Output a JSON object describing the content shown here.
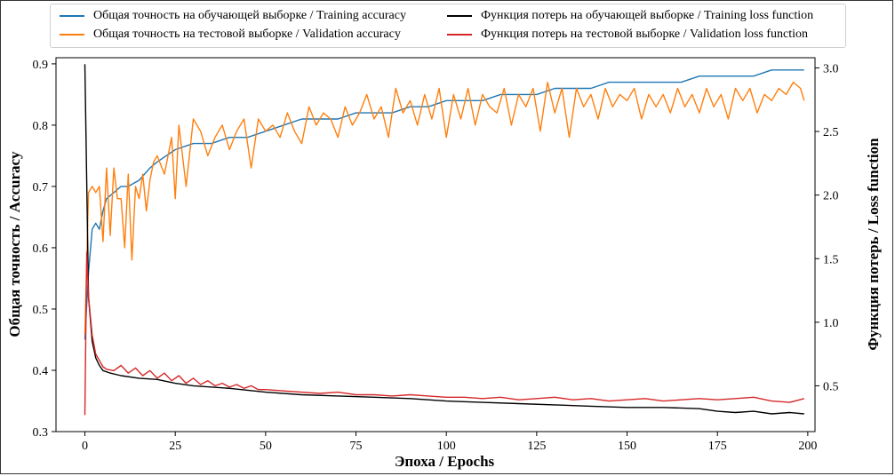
{
  "chart_data": {
    "type": "line",
    "xlabel": "Эпоха / Epochs",
    "ylabel_left": "Общая точность / Accuracy",
    "ylabel_right": "Функция потерь / Loss function",
    "xlim": [
      -8,
      202
    ],
    "ylim_left": [
      0.3,
      0.91
    ],
    "ylim_right": [
      0.14,
      3.08
    ],
    "x_ticks": [
      0,
      25,
      50,
      75,
      100,
      125,
      150,
      175,
      200
    ],
    "x_tick_labels": [
      "0",
      "25",
      "50",
      "75",
      "100",
      "125",
      "150",
      "175",
      "200"
    ],
    "y_left_ticks": [
      0.3,
      0.4,
      0.5,
      0.6,
      0.7,
      0.8,
      0.9
    ],
    "y_left_tick_labels": [
      "0.3",
      "0.4",
      "0.5",
      "0.6",
      "0.7",
      "0.8",
      "0.9"
    ],
    "y_right_ticks": [
      0.5,
      1.0,
      1.5,
      2.0,
      2.5,
      3.0
    ],
    "y_right_tick_labels": [
      "0.5",
      "1.0",
      "1.5",
      "2.0",
      "2.5",
      "3.0"
    ],
    "legend_placement": "top, outside, 2 columns",
    "series": [
      {
        "name": "Общая точность на обучающей выборке / Training accuracy",
        "axis": "left",
        "color": "#1f77b4",
        "x": [
          0,
          1,
          2,
          3,
          4,
          5,
          6,
          8,
          10,
          12,
          15,
          18,
          20,
          25,
          30,
          35,
          40,
          45,
          50,
          55,
          60,
          65,
          70,
          75,
          80,
          85,
          90,
          95,
          100,
          105,
          110,
          115,
          120,
          125,
          130,
          135,
          140,
          145,
          150,
          155,
          160,
          165,
          170,
          175,
          180,
          185,
          190,
          195,
          199
        ],
        "values": [
          0.45,
          0.56,
          0.63,
          0.64,
          0.63,
          0.66,
          0.68,
          0.69,
          0.7,
          0.7,
          0.71,
          0.73,
          0.74,
          0.76,
          0.77,
          0.77,
          0.78,
          0.78,
          0.79,
          0.8,
          0.81,
          0.81,
          0.81,
          0.82,
          0.82,
          0.82,
          0.83,
          0.83,
          0.84,
          0.84,
          0.84,
          0.85,
          0.85,
          0.85,
          0.86,
          0.86,
          0.86,
          0.87,
          0.87,
          0.87,
          0.87,
          0.87,
          0.88,
          0.88,
          0.88,
          0.88,
          0.89,
          0.89,
          0.89
        ]
      },
      {
        "name": "Общая точность на тестовой выборке / Validation accuracy",
        "axis": "left",
        "color": "#ff7f0e",
        "x": [
          0,
          1,
          2,
          3,
          4,
          5,
          6,
          7,
          8,
          9,
          10,
          11,
          12,
          13,
          14,
          15,
          16,
          17,
          18,
          19,
          20,
          22,
          24,
          25,
          26,
          28,
          30,
          32,
          34,
          36,
          38,
          40,
          42,
          44,
          46,
          48,
          50,
          52,
          54,
          56,
          58,
          60,
          62,
          64,
          66,
          68,
          70,
          72,
          74,
          76,
          78,
          80,
          82,
          84,
          86,
          88,
          90,
          92,
          94,
          96,
          98,
          100,
          102,
          104,
          106,
          108,
          110,
          112,
          114,
          116,
          118,
          120,
          122,
          124,
          126,
          128,
          130,
          132,
          134,
          136,
          138,
          140,
          142,
          144,
          146,
          148,
          150,
          152,
          154,
          156,
          158,
          160,
          162,
          164,
          166,
          168,
          170,
          172,
          174,
          176,
          178,
          180,
          182,
          184,
          186,
          188,
          190,
          192,
          194,
          196,
          198,
          199
        ],
        "values": [
          0.46,
          0.69,
          0.7,
          0.69,
          0.7,
          0.61,
          0.73,
          0.62,
          0.73,
          0.68,
          0.68,
          0.6,
          0.72,
          0.58,
          0.7,
          0.68,
          0.72,
          0.66,
          0.71,
          0.74,
          0.75,
          0.72,
          0.78,
          0.68,
          0.8,
          0.7,
          0.81,
          0.79,
          0.75,
          0.78,
          0.8,
          0.76,
          0.79,
          0.81,
          0.73,
          0.81,
          0.79,
          0.8,
          0.78,
          0.82,
          0.79,
          0.77,
          0.83,
          0.8,
          0.82,
          0.81,
          0.78,
          0.83,
          0.8,
          0.82,
          0.85,
          0.81,
          0.83,
          0.78,
          0.86,
          0.82,
          0.84,
          0.8,
          0.85,
          0.81,
          0.86,
          0.78,
          0.85,
          0.81,
          0.86,
          0.8,
          0.85,
          0.83,
          0.82,
          0.86,
          0.8,
          0.85,
          0.83,
          0.86,
          0.79,
          0.87,
          0.82,
          0.86,
          0.78,
          0.86,
          0.83,
          0.85,
          0.81,
          0.86,
          0.83,
          0.85,
          0.84,
          0.86,
          0.81,
          0.85,
          0.83,
          0.85,
          0.82,
          0.86,
          0.83,
          0.85,
          0.82,
          0.86,
          0.83,
          0.85,
          0.81,
          0.86,
          0.84,
          0.86,
          0.82,
          0.85,
          0.84,
          0.86,
          0.85,
          0.87,
          0.86,
          0.84
        ]
      },
      {
        "name": "Функция потерь на обучающей выборке / Training loss function",
        "axis": "right",
        "color": "#000000",
        "x": [
          0,
          1,
          2,
          3,
          4,
          5,
          7,
          10,
          15,
          20,
          25,
          30,
          40,
          50,
          60,
          70,
          80,
          90,
          100,
          110,
          120,
          130,
          140,
          150,
          160,
          170,
          175,
          180,
          185,
          190,
          195,
          199
        ],
        "values": [
          3.03,
          1.2,
          0.85,
          0.72,
          0.66,
          0.62,
          0.6,
          0.58,
          0.56,
          0.55,
          0.52,
          0.5,
          0.48,
          0.45,
          0.43,
          0.42,
          0.41,
          0.4,
          0.38,
          0.37,
          0.36,
          0.35,
          0.34,
          0.33,
          0.33,
          0.32,
          0.3,
          0.29,
          0.3,
          0.28,
          0.29,
          0.28
        ]
      },
      {
        "name": "Функция потерь на тестовой выборке / Validation loss function",
        "axis": "right",
        "color": "#d62728",
        "x": [
          0,
          0.5,
          1,
          2,
          3,
          4,
          5,
          6,
          8,
          10,
          12,
          14,
          16,
          18,
          20,
          22,
          24,
          26,
          28,
          30,
          32,
          34,
          36,
          38,
          40,
          42,
          44,
          46,
          48,
          50,
          55,
          60,
          65,
          70,
          75,
          80,
          85,
          90,
          95,
          100,
          105,
          110,
          115,
          120,
          125,
          130,
          135,
          140,
          145,
          150,
          155,
          160,
          165,
          170,
          175,
          180,
          185,
          190,
          195,
          199
        ],
        "values": [
          0.27,
          1.55,
          1.2,
          0.9,
          0.75,
          0.7,
          0.65,
          0.63,
          0.62,
          0.66,
          0.6,
          0.64,
          0.58,
          0.62,
          0.56,
          0.6,
          0.54,
          0.58,
          0.52,
          0.56,
          0.51,
          0.54,
          0.5,
          0.52,
          0.49,
          0.51,
          0.48,
          0.5,
          0.47,
          0.47,
          0.46,
          0.45,
          0.44,
          0.45,
          0.43,
          0.43,
          0.42,
          0.43,
          0.42,
          0.41,
          0.41,
          0.4,
          0.41,
          0.39,
          0.4,
          0.41,
          0.39,
          0.4,
          0.38,
          0.39,
          0.4,
          0.38,
          0.39,
          0.4,
          0.39,
          0.4,
          0.41,
          0.38,
          0.37,
          0.4
        ]
      }
    ]
  }
}
